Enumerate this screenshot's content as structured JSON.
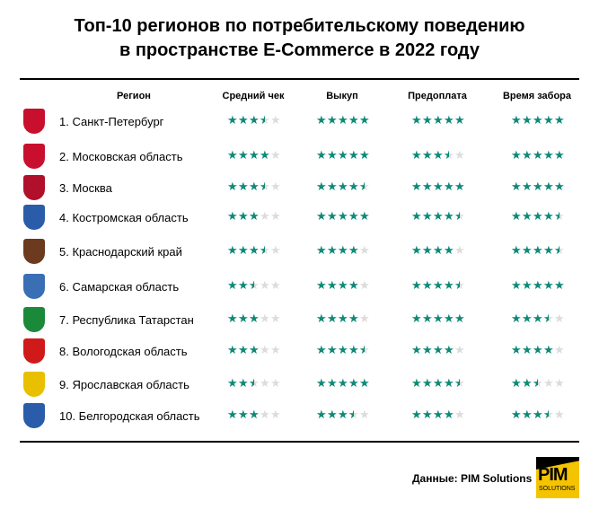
{
  "title_line1": "Топ-10 регионов по потребительскому поведению",
  "title_line2": "в пространстве E-Commerce в 2022 году",
  "chart_data": {
    "type": "table",
    "title": "Топ-10 регионов по потребительскому поведению в пространстве E-Commerce в 2022 году",
    "columns": [
      "Регион",
      "Средний чек",
      "Выкуп",
      "Предоплата",
      "Время забора"
    ],
    "max_stars": 5,
    "star_color": "#0e8a78",
    "rows": [
      {
        "region": "1. Санкт-Петербург",
        "emblem_color": "#c8102e",
        "ratings": [
          3.5,
          5,
          5,
          5
        ]
      },
      {
        "region": "2. Московская область",
        "emblem_color": "#c8102e",
        "ratings": [
          4,
          5,
          3.5,
          5
        ]
      },
      {
        "region": "3. Москва",
        "emblem_color": "#b0102a",
        "ratings": [
          3.5,
          4.5,
          5,
          5
        ]
      },
      {
        "region": "4. Костромская область",
        "emblem_color": "#2a5caa",
        "ratings": [
          3,
          5,
          4.5,
          4.5
        ]
      },
      {
        "region": "5. Краснодарский край",
        "emblem_color": "#6b3a1f",
        "ratings": [
          3.5,
          4,
          4,
          4.5
        ]
      },
      {
        "region": "6. Самарская область",
        "emblem_color": "#3a6fb5",
        "ratings": [
          2.5,
          4,
          4.5,
          5
        ]
      },
      {
        "region": "7. Республика Татарстан",
        "emblem_color": "#1a8a3a",
        "ratings": [
          3,
          4,
          5,
          3.5
        ]
      },
      {
        "region": "8. Вологодская область",
        "emblem_color": "#d01a1a",
        "ratings": [
          3,
          4.5,
          4,
          4
        ]
      },
      {
        "region": "9. Ярославская область",
        "emblem_color": "#e8c000",
        "ratings": [
          2.5,
          5,
          4.5,
          2.5
        ]
      },
      {
        "region": "10. Белгородская область",
        "emblem_color": "#2a5caa",
        "ratings": [
          3,
          3.5,
          4,
          3.5
        ]
      }
    ]
  },
  "source": "Данные: PIM Solutions",
  "logo": {
    "main": "PIM",
    "sub": "SOLUTIONS"
  }
}
